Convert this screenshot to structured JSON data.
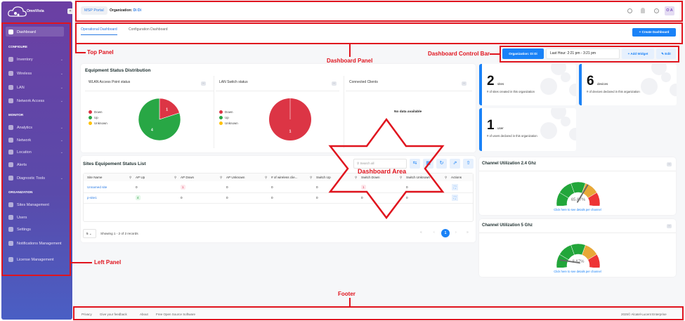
{
  "sidebar": {
    "brand": "OmniVista",
    "active": "Dashboard",
    "sections": [
      {
        "title": "CONFIGURE",
        "items": [
          {
            "label": "Inventory",
            "icon": "inventory-icon",
            "chevron": true
          },
          {
            "label": "Wireless",
            "icon": "wifi-icon",
            "chevron": true
          },
          {
            "label": "LAN",
            "icon": "lan-icon",
            "chevron": true
          },
          {
            "label": "Network Access",
            "icon": "lock-icon",
            "chevron": true
          }
        ]
      },
      {
        "title": "MONITOR",
        "items": [
          {
            "label": "Analytics",
            "icon": "analytics-icon",
            "chevron": true
          },
          {
            "label": "Network",
            "icon": "network-icon",
            "chevron": true
          },
          {
            "label": "Location",
            "icon": "location-icon",
            "chevron": true
          },
          {
            "label": "Alerts",
            "icon": "alert-icon",
            "chevron": false
          },
          {
            "label": "Diagnostic Tools",
            "icon": "tools-icon",
            "chevron": true
          }
        ]
      },
      {
        "title": "ORGANIZATION",
        "items": [
          {
            "label": "Sites Management",
            "icon": "home-icon",
            "chevron": false
          },
          {
            "label": "Users",
            "icon": "users-icon",
            "chevron": false
          },
          {
            "label": "Settings",
            "icon": "wrench-icon",
            "chevron": false
          },
          {
            "label": "Notifications Management",
            "icon": "bell-icon",
            "chevron": false
          },
          {
            "label": "License Management",
            "icon": "license-icon",
            "chevron": false
          }
        ]
      }
    ]
  },
  "topbar": {
    "portal": "MSP Portal",
    "org_label": "Organization:",
    "org_value": "Di Di",
    "avatar": "O A"
  },
  "tabs": [
    {
      "label": "Operational Dashboard",
      "active": true
    },
    {
      "label": "Configuration Dashboard",
      "active": false
    }
  ],
  "create_dashboard": "Create Dashboard",
  "control_bar": {
    "org": "Organization: Di Di",
    "time": "Last Hour: 2:21 pm - 3:21 pm",
    "add_widget": "Add Widget",
    "edit": "Edit"
  },
  "equipment": {
    "title": "Equipment Status Distribution",
    "no_data": "No data available",
    "panels": [
      {
        "title": "WLAN Access Point status"
      },
      {
        "title": "LAN Switch status"
      },
      {
        "title": "Connected Clients"
      }
    ]
  },
  "chart_data": [
    {
      "type": "pie",
      "title": "WLAN Access Point status",
      "categories": [
        "Down",
        "Up",
        "Unknown"
      ],
      "values": [
        1,
        4,
        0
      ],
      "colors": [
        "#dc3545",
        "#28a745",
        "#ffc107"
      ],
      "legend": "left"
    },
    {
      "type": "pie",
      "title": "LAN Switch status",
      "categories": [
        "Down",
        "Up",
        "Unknown"
      ],
      "values": [
        1,
        0,
        0
      ],
      "colors": [
        "#dc3545",
        "#28a745",
        "#ffc107"
      ],
      "legend": "left"
    }
  ],
  "stats": [
    {
      "num": "2",
      "unit": "sites",
      "desc": "# of sites created in this organization"
    },
    {
      "num": "6",
      "unit": "devices",
      "desc": "# of devices declared in this organization"
    },
    {
      "num": "1",
      "unit": "user",
      "desc": "# of users declared in this organization"
    }
  ],
  "sites_table": {
    "title": "Sites Equipement Status List",
    "search_placeholder": "Search all",
    "columns": [
      "Site Name",
      "AP Up",
      "AP Down",
      "AP Unknown",
      "# of wireless clie...",
      "Switch Up",
      "Switch Down",
      "Switch Unknown",
      "Actions"
    ],
    "rows": [
      [
        "Unnamed site",
        "0",
        "1",
        "0",
        "0",
        "0",
        "1",
        "0"
      ],
      [
        "p-site1",
        "4",
        "0",
        "0",
        "0",
        "0",
        "0",
        "0"
      ]
    ],
    "page_size": "5",
    "showing": "Showing 1 - 2 of 2 records",
    "current_page": "1"
  },
  "gauges": [
    {
      "title": "Channel Utilization 2.4 Ghz",
      "value": 65.67,
      "label": "65.67%",
      "link": "Click here to see details per channel"
    },
    {
      "title": "Channel Utilization 5 Ghz",
      "value": 8.67,
      "label": "8.67%",
      "link": "Click here to see details per channel"
    }
  ],
  "gauge_colors": [
    "#22a63a",
    "#22a63a",
    "#22a63a",
    "#e8a838",
    "#ee3535"
  ],
  "footer": {
    "links": [
      "Privacy",
      "Give your feedback",
      "About",
      "Free Open Source Software"
    ],
    "copyright": "2025© Alcatel-Lucent Enterprise"
  },
  "annotations": {
    "top_panel": "Top Panel",
    "dashboard_panel": "Dashboard Panel",
    "control_bar": "Dashboard Control Bar",
    "dashboard_area": "Dashboard Area",
    "left_panel": "Left Panel",
    "footer": "Footer"
  },
  "accent_color": "#1a82f7"
}
